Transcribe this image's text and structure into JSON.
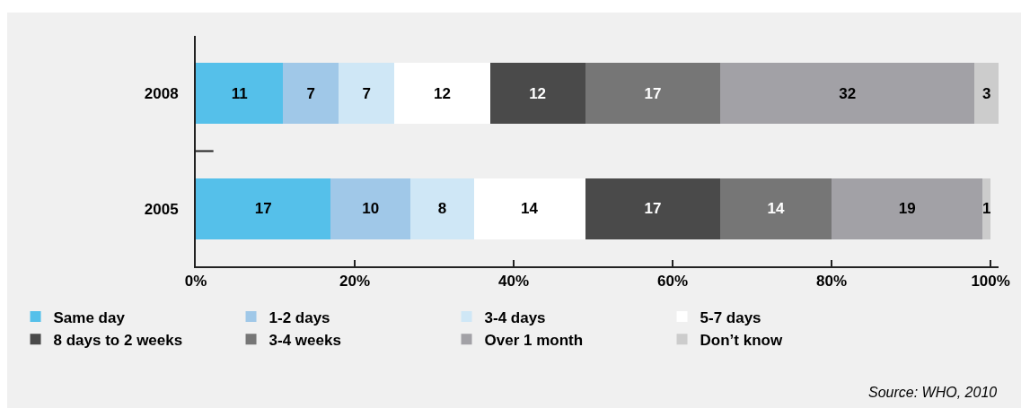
{
  "chart_data": {
    "type": "bar",
    "orientation": "horizontal",
    "stacked": true,
    "categories": [
      "2008",
      "2005"
    ],
    "series": [
      {
        "name": "Same day",
        "color": "#55c0ea",
        "values": [
          11,
          17
        ]
      },
      {
        "name": "1-2 days",
        "color": "#a0c8e8",
        "values": [
          7,
          10
        ]
      },
      {
        "name": "3-4 days",
        "color": "#cfe7f6",
        "values": [
          7,
          8
        ]
      },
      {
        "name": "5-7 days",
        "color": "#ffffff",
        "values": [
          12,
          14
        ]
      },
      {
        "name": "8 days to 2 weeks",
        "color": "#4a4a4a",
        "values": [
          12,
          17
        ]
      },
      {
        "name": "3-4 weeks",
        "color": "#767676",
        "values": [
          17,
          14
        ]
      },
      {
        "name": "Over 1 month",
        "color": "#a2a1a6",
        "values": [
          32,
          19
        ]
      },
      {
        "name": "Don’t know",
        "color": "#cccccc",
        "values": [
          3,
          1
        ]
      }
    ],
    "xlim": [
      0,
      101
    ],
    "xticks": [
      {
        "value": 0,
        "label": "0%"
      },
      {
        "value": 20,
        "label": "20%"
      },
      {
        "value": 40,
        "label": "40%"
      },
      {
        "value": 60,
        "label": "60%"
      },
      {
        "value": 80,
        "label": "80%"
      },
      {
        "value": 100,
        "label": "100%"
      }
    ],
    "data_labels": true,
    "legend": "bottom",
    "annotations": [
      "Source: WHO, 2010"
    ]
  }
}
